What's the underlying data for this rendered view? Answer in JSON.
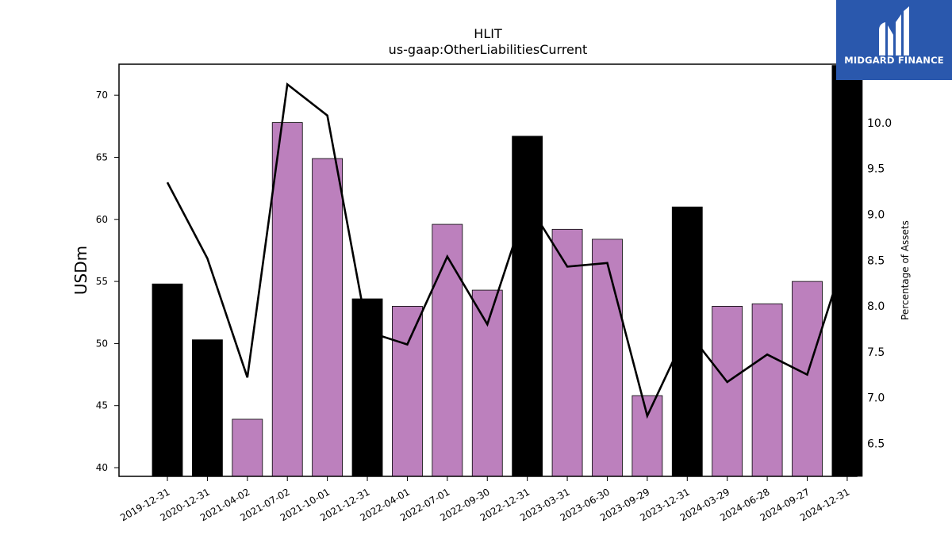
{
  "chart_data": {
    "type": "bar",
    "title": "HLIT",
    "subtitle": "us-gaap:OtherLiabilitiesCurrent",
    "ylabel": "USDm",
    "y2label": "Percentage of Assets",
    "ylim": [
      39.3,
      72.5
    ],
    "y2lim": [
      6.14,
      10.64
    ],
    "yticks": [
      40,
      45,
      50,
      55,
      60,
      65,
      70
    ],
    "y2ticks": [
      6.5,
      7.0,
      7.5,
      8.0,
      8.5,
      9.0,
      9.5,
      10.0
    ],
    "categories": [
      "2019-12-31",
      "2020-12-31",
      "2021-04-02",
      "2021-07-02",
      "2021-10-01",
      "2021-12-31",
      "2022-04-01",
      "2022-07-01",
      "2022-09-30",
      "2022-12-31",
      "2023-03-31",
      "2023-06-30",
      "2023-09-29",
      "2023-12-31",
      "2024-03-29",
      "2024-06-28",
      "2024-09-27",
      "2024-12-31"
    ],
    "series": [
      {
        "type": "bar",
        "values": [
          54.8,
          50.3,
          43.9,
          67.8,
          64.9,
          53.6,
          53.0,
          59.6,
          54.3,
          66.7,
          59.2,
          58.4,
          45.8,
          61.0,
          53.0,
          53.2,
          55.0,
          72.4
        ],
        "colors": [
          "#000000",
          "#000000",
          "#bc80bd",
          "#bc80bd",
          "#bc80bd",
          "#000000",
          "#bc80bd",
          "#bc80bd",
          "#bc80bd",
          "#000000",
          "#bc80bd",
          "#bc80bd",
          "#bc80bd",
          "#000000",
          "#bc80bd",
          "#bc80bd",
          "#bc80bd",
          "#000000"
        ]
      },
      {
        "type": "line",
        "axis": "right",
        "color": "#000000",
        "values": [
          9.35,
          8.52,
          7.22,
          10.42,
          10.08,
          7.72,
          7.58,
          8.54,
          7.8,
          9.13,
          8.43,
          8.47,
          6.8,
          7.73,
          7.17,
          7.47,
          7.25,
          8.62
        ]
      }
    ],
    "grid": false,
    "legend": "none"
  },
  "logo": {
    "text": "MIDGARD FINANCE",
    "background": "#2a58ad"
  }
}
